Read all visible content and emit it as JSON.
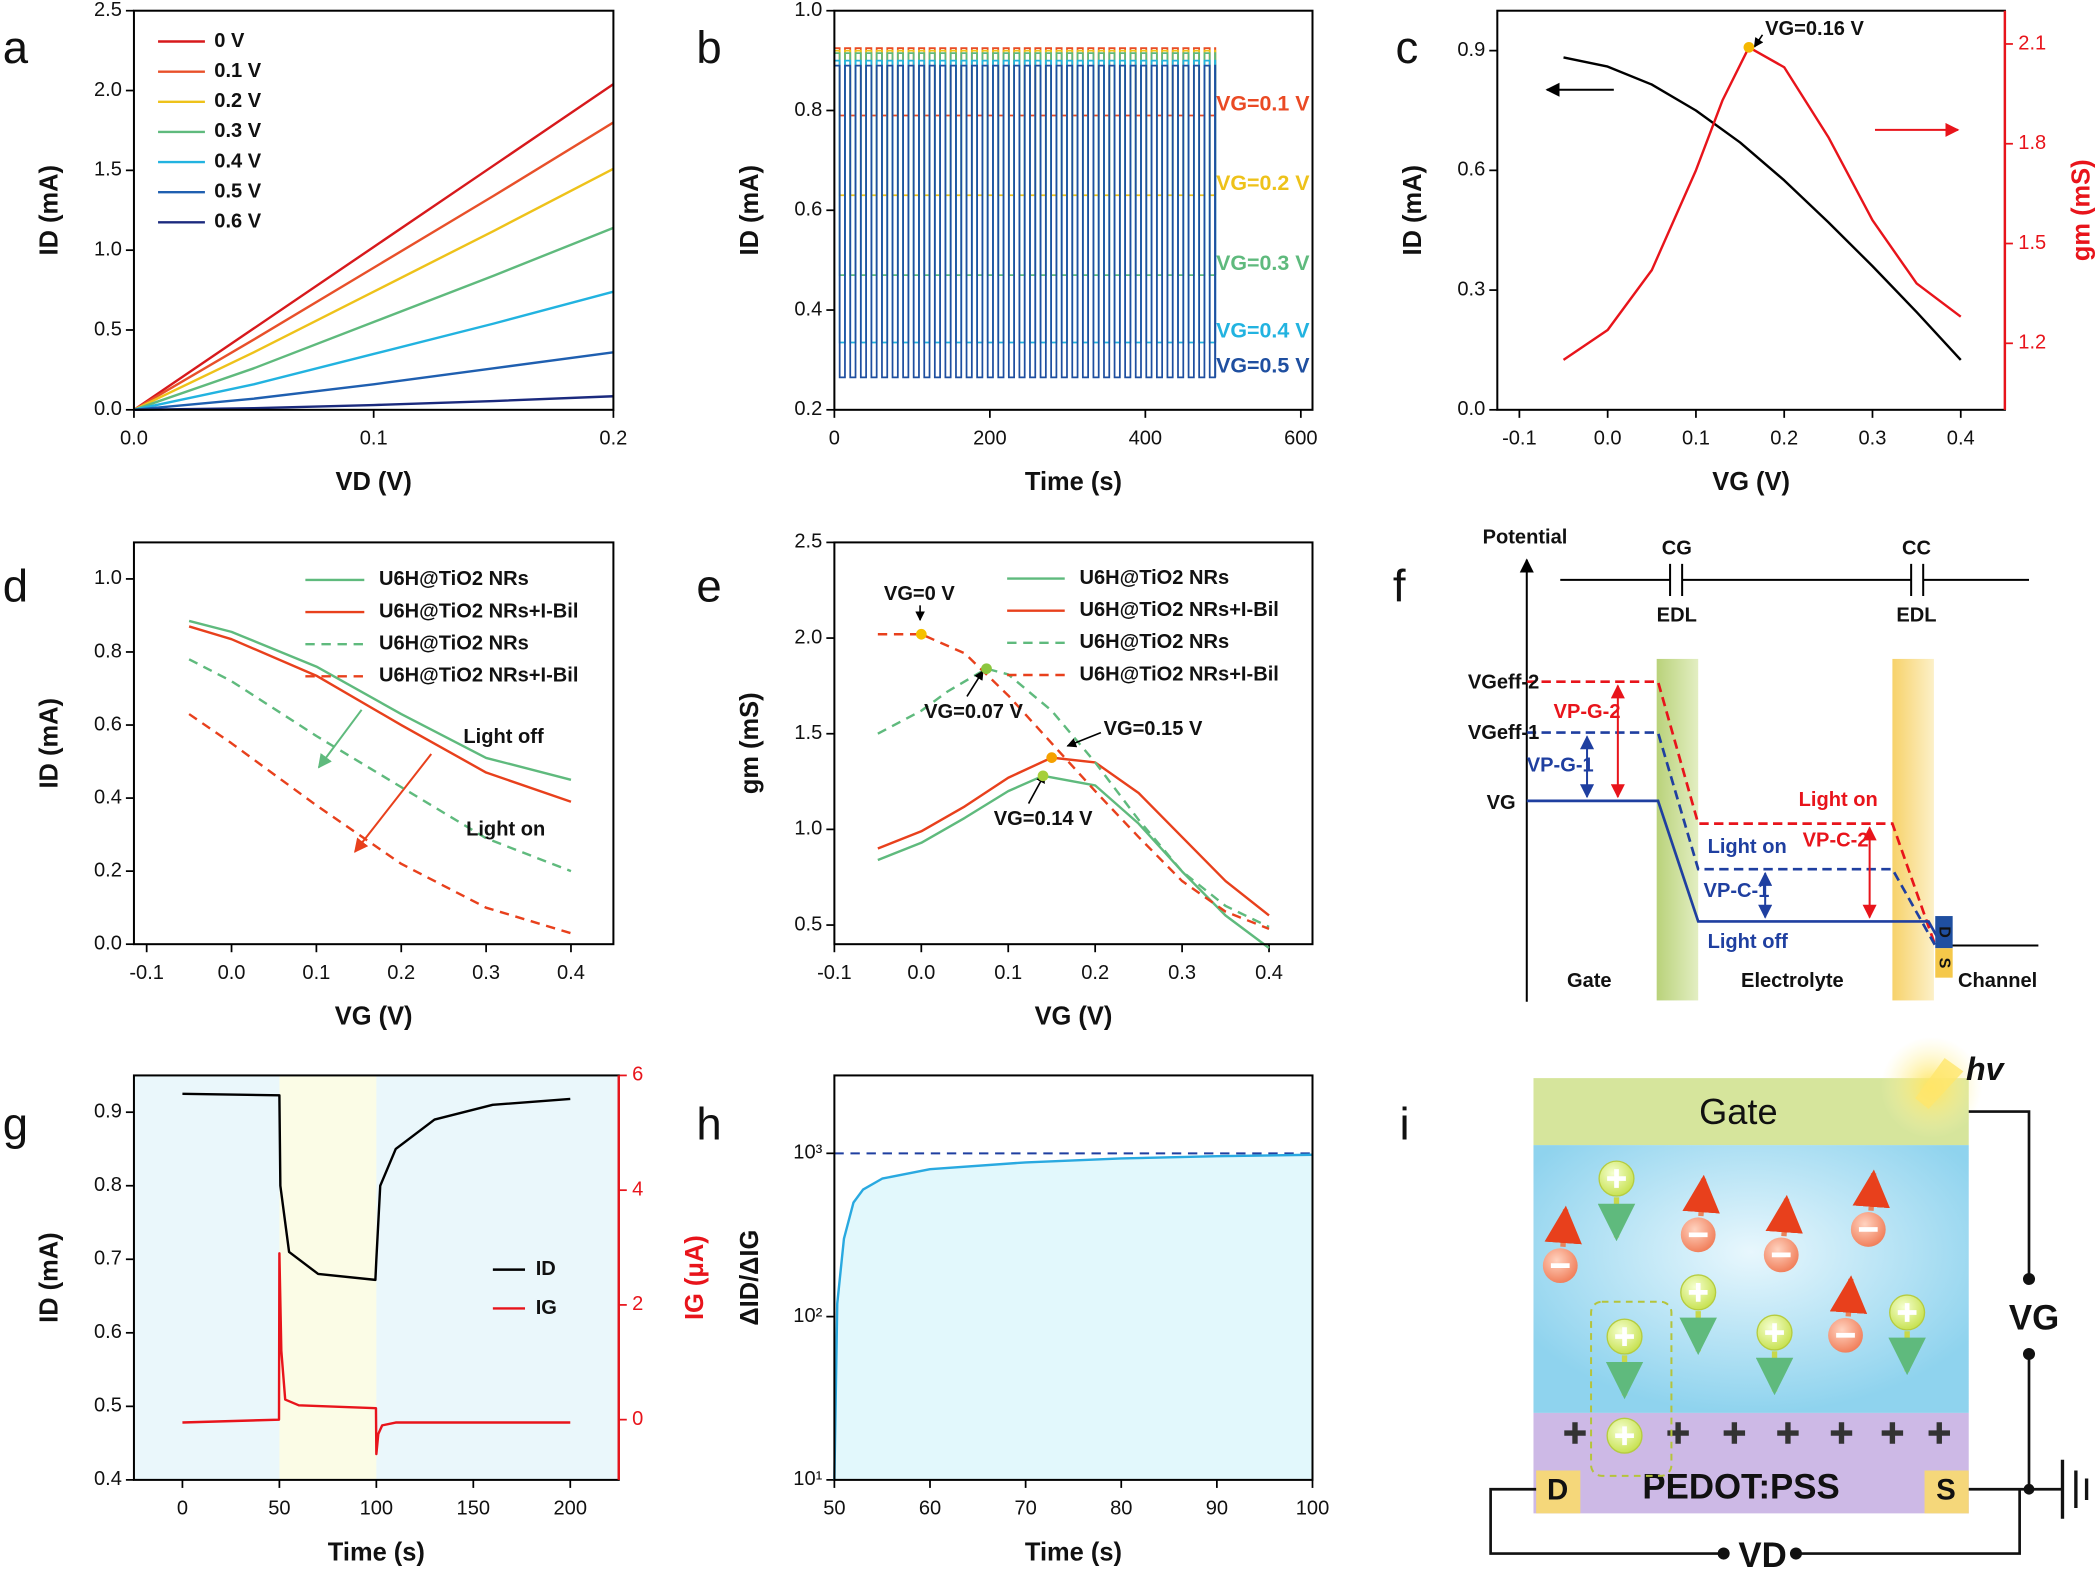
{
  "chart_data": [
    {
      "label": "a",
      "type": "line",
      "xlabel": "VD (V)",
      "ylabel": "ID (mA)",
      "xlim": [
        0,
        0.2
      ],
      "xticks": [
        {
          "value": 0,
          "label": "0.0"
        },
        0.1,
        0.2
      ],
      "ylim": [
        0,
        2.5
      ],
      "yticks": [
        {
          "value": 0,
          "label": "0.0"
        },
        0.5,
        {
          "value": 1,
          "label": "1.0"
        },
        1.5,
        {
          "value": 2,
          "label": "2.0"
        },
        2.5
      ],
      "legend": "upper left",
      "x": [
        0,
        0.05,
        0.1,
        0.15,
        0.2
      ],
      "series": [
        {
          "name": "0 V",
          "color": "#d7191c",
          "values": [
            0,
            0.51,
            1.02,
            1.53,
            2.04
          ]
        },
        {
          "name": "0.1 V",
          "color": "#e8502a",
          "values": [
            0,
            0.44,
            0.89,
            1.34,
            1.8
          ]
        },
        {
          "name": "0.2 V",
          "color": "#eec21a",
          "values": [
            0,
            0.36,
            0.74,
            1.12,
            1.51
          ]
        },
        {
          "name": "0.3 V",
          "color": "#5fba7d",
          "values": [
            0,
            0.26,
            0.55,
            0.84,
            1.14
          ]
        },
        {
          "name": "0.4 V",
          "color": "#22b3e0",
          "values": [
            0,
            0.16,
            0.35,
            0.54,
            0.74
          ]
        },
        {
          "name": "0.5 V",
          "color": "#1f5fb0",
          "values": [
            0,
            0.07,
            0.16,
            0.26,
            0.36
          ]
        },
        {
          "name": "0.6 V",
          "color": "#1b2a7e",
          "values": [
            0,
            0.01,
            0.03,
            0.055,
            0.085
          ]
        }
      ]
    },
    {
      "label": "b",
      "type": "pulse",
      "xlabel": "Time (s)",
      "ylabel": "ID (mA)",
      "xlim": [
        0,
        615
      ],
      "xticks": [
        0,
        200,
        400,
        600
      ],
      "ylim": [
        0.2,
        1.0
      ],
      "yticks": [
        0.2,
        0.4,
        0.6,
        0.8,
        {
          "value": 1,
          "label": "1.0"
        }
      ],
      "period": 13.6,
      "x_end": 490,
      "series": [
        {
          "name": "VG=0.1 V",
          "color": "#ea4a24",
          "high": 0.925,
          "low": 0.79
        },
        {
          "name": "VG=0.2 V",
          "color": "#eec21a",
          "high": 0.92,
          "low": 0.63
        },
        {
          "name": "VG=0.3 V",
          "color": "#5fba7d",
          "high": 0.915,
          "low": 0.47
        },
        {
          "name": "VG=0.4 V",
          "color": "#22b3e0",
          "high": 0.9,
          "low": 0.335
        },
        {
          "name": "VG=0.5 V",
          "color": "#1f4fa0",
          "high": 0.89,
          "low": 0.265
        }
      ]
    },
    {
      "label": "c",
      "type": "line",
      "xlabel": "VG (V)",
      "ylabel": "ID (mA)",
      "y2label": "gm (mS)",
      "y2color": "#e8141b",
      "xlim": [
        -0.125,
        0.45
      ],
      "xticks": [
        -0.1,
        {
          "value": 0,
          "label": "0.0"
        },
        0.1,
        0.2,
        0.3,
        0.4
      ],
      "ylim": [
        0,
        1.0
      ],
      "yticks": [
        {
          "value": 0,
          "label": "0.0"
        },
        0.3,
        0.6,
        0.9
      ],
      "y2lim": [
        1.0,
        2.2
      ],
      "y2ticks": [
        1.2,
        1.5,
        1.8,
        2.1
      ],
      "series": [
        {
          "color": "#000000",
          "x": [
            -0.05,
            0,
            0.05,
            0.1,
            0.15,
            0.2,
            0.25,
            0.3,
            0.35,
            0.4
          ],
          "values": [
            0.883,
            0.86,
            0.815,
            0.75,
            0.67,
            0.575,
            0.47,
            0.36,
            0.245,
            0.125
          ]
        },
        {
          "color": "#e8141b",
          "axis": "y2",
          "x": [
            -0.05,
            0,
            0.05,
            0.1,
            0.13,
            0.16,
            0.2,
            0.25,
            0.3,
            0.35,
            0.4
          ],
          "values": [
            1.15,
            1.24,
            1.42,
            1.72,
            1.93,
            2.09,
            2.03,
            1.82,
            1.57,
            1.38,
            1.28
          ]
        }
      ],
      "annotations": [
        {
          "text": "VG=0.16 V",
          "x": 0.16,
          "y": 2.09,
          "axis": "y2",
          "color": "#f5b800"
        }
      ]
    },
    {
      "label": "d",
      "type": "line",
      "xlabel": "VG (V)",
      "ylabel": "ID (mA)",
      "xlim": [
        -0.115,
        0.45
      ],
      "xticks": [
        -0.1,
        {
          "value": 0,
          "label": "0.0"
        },
        0.1,
        0.2,
        0.3,
        0.4
      ],
      "ylim": [
        0,
        1.1
      ],
      "yticks": [
        {
          "value": 0,
          "label": "0.0"
        },
        0.2,
        0.4,
        0.6,
        0.8,
        {
          "value": 1,
          "label": "1.0"
        }
      ],
      "legend": "upper right",
      "x": [
        -0.05,
        0,
        0.1,
        0.2,
        0.3,
        0.4
      ],
      "series": [
        {
          "name": "U6H@TiO2 NRs",
          "color": "#5fba7d",
          "values": [
            0.885,
            0.855,
            0.76,
            0.63,
            0.51,
            0.45
          ]
        },
        {
          "name": "U6H@TiO2 NRs+I-Bil",
          "color": "#e8401c",
          "values": [
            0.87,
            0.835,
            0.735,
            0.6,
            0.47,
            0.39
          ]
        },
        {
          "name": "U6H@TiO2 NRs",
          "color": "#5fba7d",
          "dash": true,
          "values": [
            0.78,
            0.72,
            0.57,
            0.43,
            0.29,
            0.2
          ]
        },
        {
          "name": "U6H@TiO2 NRs+I-Bil",
          "color": "#e8401c",
          "dash": true,
          "values": [
            0.63,
            0.55,
            0.38,
            0.22,
            0.1,
            0.03
          ]
        }
      ],
      "annotations": [
        {
          "text": "Light off"
        },
        {
          "text": "Light on"
        }
      ]
    },
    {
      "label": "e",
      "type": "line",
      "xlabel": "VG (V)",
      "ylabel": "gm (mS)",
      "xlim": [
        -0.1,
        0.45
      ],
      "xticks": [
        -0.1,
        {
          "value": 0,
          "label": "0.0"
        },
        0.1,
        0.2,
        0.3,
        0.4
      ],
      "ylim": [
        0.4,
        2.5
      ],
      "yticks": [
        0.5,
        {
          "value": 1,
          "label": "1.0"
        },
        1.5,
        {
          "value": 2,
          "label": "2.0"
        },
        2.5
      ],
      "legend": "upper right",
      "series": [
        {
          "name": "U6H@TiO2 NRs",
          "color": "#5fba7d",
          "x": [
            -0.05,
            0,
            0.05,
            0.1,
            0.14,
            0.2,
            0.25,
            0.3,
            0.35,
            0.4
          ],
          "values": [
            0.84,
            0.93,
            1.06,
            1.2,
            1.28,
            1.23,
            1.03,
            0.78,
            0.55,
            0.38
          ]
        },
        {
          "name": "U6H@TiO2 NRs+I-Bil",
          "color": "#e8401c",
          "x": [
            -0.05,
            0,
            0.05,
            0.1,
            0.15,
            0.2,
            0.25,
            0.3,
            0.35,
            0.4
          ],
          "values": [
            0.9,
            0.99,
            1.12,
            1.27,
            1.375,
            1.35,
            1.19,
            0.96,
            0.73,
            0.55
          ]
        },
        {
          "name": "U6H@TiO2 NRs",
          "color": "#5fba7d",
          "dash": true,
          "x": [
            -0.05,
            0,
            0.03,
            0.075,
            0.1,
            0.15,
            0.2,
            0.25,
            0.3,
            0.35,
            0.4
          ],
          "values": [
            1.5,
            1.62,
            1.72,
            1.84,
            1.81,
            1.62,
            1.35,
            1.05,
            0.78,
            0.6,
            0.49
          ]
        },
        {
          "name": "U6H@TiO2 NRs+I-Bil",
          "color": "#e8401c",
          "dash": true,
          "x": [
            -0.05,
            0,
            0.05,
            0.1,
            0.15,
            0.2,
            0.25,
            0.3,
            0.35,
            0.4
          ],
          "values": [
            2.02,
            2.02,
            1.92,
            1.7,
            1.45,
            1.2,
            0.96,
            0.73,
            0.57,
            0.48
          ]
        }
      ],
      "annotations": [
        {
          "text": "VG=0 V",
          "x": 0,
          "y": 2.02,
          "color": "#f5c000"
        },
        {
          "text": "VG=0.07 V",
          "x": 0.075,
          "y": 1.84,
          "color": "#8cc63f"
        },
        {
          "text": "VG=0.15 V",
          "x": 0.15,
          "y": 1.375,
          "color": "#f5a000"
        },
        {
          "text": "VG=0.14 V",
          "x": 0.14,
          "y": 1.28,
          "color": "#a6cf3a"
        }
      ]
    },
    {
      "label": "g",
      "type": "line",
      "xlabel": "Time (s)",
      "ylabel": "ID (mA)",
      "y2label": "IG (μA)",
      "y2color": "#e8141b",
      "xlim": [
        -25,
        225
      ],
      "xticks": [
        0,
        50,
        100,
        150,
        200
      ],
      "ylim": [
        0.4,
        0.95
      ],
      "yticks": [
        0.4,
        0.5,
        0.6,
        0.7,
        0.8,
        0.9
      ],
      "y2lim": [
        -1.05,
        6
      ],
      "y2ticks": [
        0,
        2,
        4,
        6
      ],
      "shaded_x": [
        50,
        100
      ],
      "legend": "center right",
      "series": [
        {
          "name": "ID",
          "color": "#000000",
          "x": [
            0,
            50,
            50.5,
            55,
            70,
            99.5,
            100,
            102,
            110,
            130,
            160,
            200
          ],
          "values": [
            0.925,
            0.923,
            0.8,
            0.71,
            0.68,
            0.672,
            0.7,
            0.8,
            0.85,
            0.89,
            0.91,
            0.918
          ]
        },
        {
          "name": "IG",
          "color": "#e8141b",
          "axis": "y2",
          "x": [
            0,
            49.8,
            50,
            51,
            53,
            60,
            99.8,
            100,
            101,
            103,
            110,
            200
          ],
          "values": [
            -0.05,
            0,
            2.9,
            1.2,
            0.35,
            0.25,
            0.2,
            -0.6,
            -0.25,
            -0.1,
            -0.05,
            -0.05
          ]
        }
      ]
    },
    {
      "label": "h",
      "type": "line",
      "xlabel": "Time (s)",
      "ylabel": "ΔID/ΔIG",
      "xlim": [
        50,
        100
      ],
      "xticks": [
        50,
        60,
        70,
        80,
        90,
        100
      ],
      "log_y": true,
      "ylim": [
        10,
        3000
      ],
      "yticks": [
        {
          "value": 10,
          "label": "10¹"
        },
        {
          "value": 100,
          "label": "10²"
        },
        {
          "value": 1000,
          "label": "10³"
        }
      ],
      "reference": 1000,
      "fill": "#e2f8fc",
      "series": [
        {
          "color": "#29a9e0",
          "x": [
            50,
            50.3,
            51,
            52,
            53,
            55,
            60,
            70,
            80,
            90,
            100
          ],
          "values": [
            10,
            120,
            300,
            500,
            600,
            700,
            800,
            880,
            930,
            960,
            980
          ]
        }
      ]
    }
  ],
  "diagram_f": {
    "label": "f",
    "axis": "Potential",
    "capacitors": [
      "CG",
      "CC"
    ],
    "edl": [
      "EDL",
      "EDL"
    ],
    "levels": [
      "VGeff-2",
      "VGeff-1",
      "VG"
    ],
    "drops": [
      "VP-G-2",
      "VP-G-1",
      "VP-C-2",
      "VP-C-1"
    ],
    "states": [
      "Light on",
      "Light on",
      "Light off"
    ],
    "regions": [
      "Gate",
      "Electrolyte",
      "Channel"
    ],
    "contacts": [
      "D",
      "S"
    ]
  },
  "diagram_i": {
    "label": "i",
    "gate": "Gate",
    "light": "hv",
    "channel": "PEDOT:PSS",
    "contacts": [
      "D",
      "S"
    ],
    "voltages": [
      "VG",
      "VD"
    ]
  }
}
